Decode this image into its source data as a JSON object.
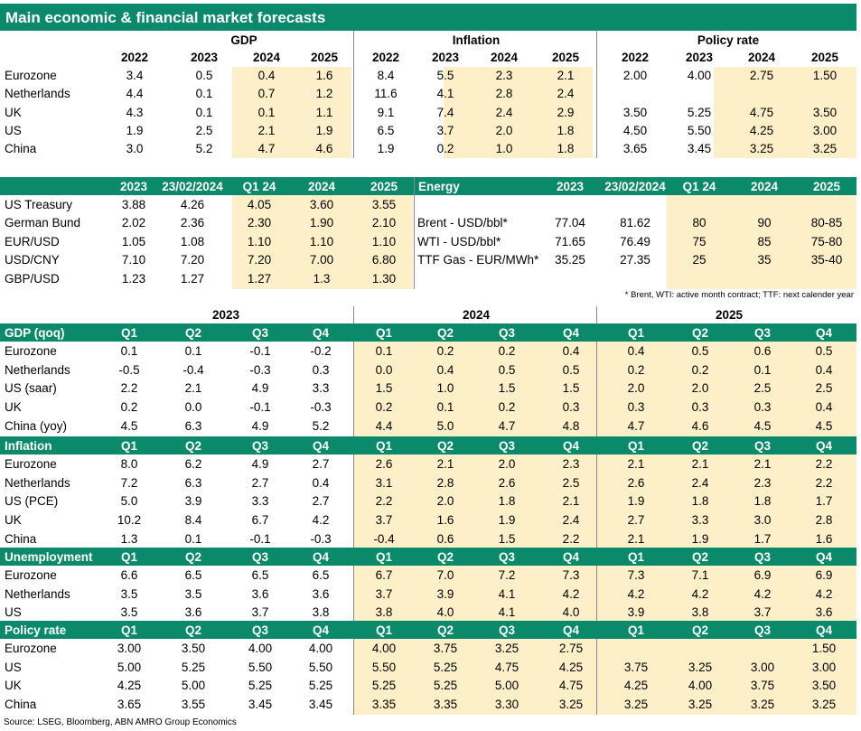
{
  "title": "Main economic & financial market forecasts",
  "source": "Source: LSEG, Bloomberg, ABN AMRO Group Economics",
  "note": "* Brent, WTI: active month contract; TTF: next calender year",
  "section1": {
    "groups": [
      "GDP",
      "Inflation",
      "Policy rate"
    ],
    "years": [
      "2022",
      "2023",
      "2024",
      "2025"
    ],
    "rows": [
      {
        "label": "Eurozone",
        "gdp": [
          "3.4",
          "0.5",
          "0.4",
          "1.6"
        ],
        "infl": [
          "8.4",
          "5.5",
          "2.3",
          "2.1"
        ],
        "rate": [
          "2.00",
          "4.00",
          "2.75",
          "1.50"
        ]
      },
      {
        "label": "Netherlands",
        "gdp": [
          "4.4",
          "0.1",
          "0.7",
          "1.2"
        ],
        "infl": [
          "11.6",
          "4.1",
          "2.8",
          "2.4"
        ],
        "rate": [
          "",
          "",
          "",
          ""
        ]
      },
      {
        "label": "UK",
        "gdp": [
          "4.3",
          "0.1",
          "0.1",
          "1.1"
        ],
        "infl": [
          "9.1",
          "7.4",
          "2.4",
          "2.9"
        ],
        "rate": [
          "3.50",
          "5.25",
          "4.75",
          "3.50"
        ]
      },
      {
        "label": "US",
        "gdp": [
          "1.9",
          "2.5",
          "2.1",
          "1.9"
        ],
        "infl": [
          "6.5",
          "3.7",
          "2.0",
          "1.8"
        ],
        "rate": [
          "4.50",
          "5.50",
          "4.25",
          "3.00"
        ]
      },
      {
        "label": "China",
        "gdp": [
          "3.0",
          "5.2",
          "4.7",
          "4.6"
        ],
        "infl": [
          "1.9",
          "0.2",
          "1.0",
          "1.8"
        ],
        "rate": [
          "3.65",
          "3.45",
          "3.25",
          "3.25"
        ]
      }
    ]
  },
  "section2": {
    "fin_headers": [
      "2023",
      "23/02/2024",
      "Q1 24",
      "2024",
      "2025"
    ],
    "fin_rows": [
      {
        "label": "US Treasury",
        "values": [
          "3.88",
          "4.26",
          "4.05",
          "3.60",
          "3.55"
        ]
      },
      {
        "label": "German Bund",
        "values": [
          "2.02",
          "2.36",
          "2.30",
          "1.90",
          "2.10"
        ]
      },
      {
        "label": "EUR/USD",
        "values": [
          "1.05",
          "1.08",
          "1.10",
          "1.10",
          "1.10"
        ]
      },
      {
        "label": "USD/CNY",
        "values": [
          "7.10",
          "7.20",
          "7.20",
          "7.00",
          "6.80"
        ]
      },
      {
        "label": "GBP/USD",
        "values": [
          "1.23",
          "1.27",
          "1.27",
          "1.3",
          "1.30"
        ]
      }
    ],
    "energy_title": "Energy",
    "energy_headers": [
      "2023",
      "23/02/2024",
      "Q1 24",
      "2024",
      "2025"
    ],
    "energy_rows": [
      {
        "label": "Brent - USD/bbl*",
        "values": [
          "77.04",
          "81.62",
          "80",
          "90",
          "80-85"
        ]
      },
      {
        "label": "WTI - USD/bbl*",
        "values": [
          "71.65",
          "76.49",
          "75",
          "85",
          "75-80"
        ]
      },
      {
        "label": "TTF Gas - EUR/MWh*",
        "values": [
          "35.25",
          "27.35",
          "25",
          "35",
          "35-40"
        ]
      }
    ]
  },
  "section3": {
    "years": [
      "2023",
      "2024",
      "2025"
    ],
    "quarters": [
      "Q1",
      "Q2",
      "Q3",
      "Q4"
    ],
    "blocks": [
      {
        "title": "GDP (qoq)",
        "rows": [
          {
            "label": "Eurozone",
            "values": [
              "0.1",
              "0.1",
              "-0.1",
              "-0.2",
              "0.1",
              "0.2",
              "0.2",
              "0.4",
              "0.4",
              "0.5",
              "0.6",
              "0.5"
            ]
          },
          {
            "label": "Netherlands",
            "values": [
              "-0.5",
              "-0.4",
              "-0.3",
              "0.3",
              "0.0",
              "0.4",
              "0.5",
              "0.5",
              "0.2",
              "0.2",
              "0.1",
              "0.4"
            ]
          },
          {
            "label": "US (saar)",
            "values": [
              "2.2",
              "2.1",
              "4.9",
              "3.3",
              "1.5",
              "1.0",
              "1.5",
              "1.5",
              "2.0",
              "2.0",
              "2.5",
              "2.5"
            ]
          },
          {
            "label": "UK",
            "values": [
              "0.2",
              "0.0",
              "-0.1",
              "-0.3",
              "0.2",
              "0.1",
              "0.2",
              "0.3",
              "0.3",
              "0.3",
              "0.3",
              "0.4"
            ]
          },
          {
            "label": "China (yoy)",
            "values": [
              "4.5",
              "6.3",
              "4.9",
              "5.2",
              "4.4",
              "5.0",
              "4.7",
              "4.8",
              "4.7",
              "4.6",
              "4.5",
              "4.5"
            ]
          }
        ]
      },
      {
        "title": "Inflation",
        "rows": [
          {
            "label": "Eurozone",
            "values": [
              "8.0",
              "6.2",
              "4.9",
              "2.7",
              "2.6",
              "2.1",
              "2.0",
              "2.3",
              "2.1",
              "2.1",
              "2.1",
              "2.2"
            ]
          },
          {
            "label": "Netherlands",
            "values": [
              "7.2",
              "6.3",
              "2.7",
              "0.4",
              "3.1",
              "2.8",
              "2.6",
              "2.5",
              "2.6",
              "2.4",
              "2.3",
              "2.2"
            ]
          },
          {
            "label": "US (PCE)",
            "values": [
              "5.0",
              "3.9",
              "3.3",
              "2.7",
              "2.2",
              "2.0",
              "1.8",
              "2.1",
              "1.9",
              "1.8",
              "1.8",
              "1.7"
            ]
          },
          {
            "label": "UK",
            "values": [
              "10.2",
              "8.4",
              "6.7",
              "4.2",
              "3.7",
              "1.6",
              "1.9",
              "2.4",
              "2.7",
              "3.3",
              "3.0",
              "2.8"
            ]
          },
          {
            "label": "China",
            "values": [
              "1.3",
              "0.1",
              "-0.1",
              "-0.3",
              "-0.4",
              "0.6",
              "1.5",
              "2.2",
              "2.1",
              "1.9",
              "1.7",
              "1.6"
            ]
          }
        ]
      },
      {
        "title": "Unemployment",
        "rows": [
          {
            "label": "Eurozone",
            "values": [
              "6.6",
              "6.5",
              "6.5",
              "6.5",
              "6.7",
              "7.0",
              "7.2",
              "7.3",
              "7.3",
              "7.1",
              "6.9",
              "6.9"
            ]
          },
          {
            "label": "Netherlands",
            "values": [
              "3.5",
              "3.5",
              "3.6",
              "3.6",
              "3.7",
              "3.9",
              "4.1",
              "4.2",
              "4.2",
              "4.2",
              "4.2",
              "4.2"
            ]
          },
          {
            "label": "US",
            "values": [
              "3.5",
              "3.6",
              "3.7",
              "3.8",
              "3.8",
              "4.0",
              "4.1",
              "4.0",
              "3.9",
              "3.8",
              "3.7",
              "3.6"
            ]
          }
        ]
      },
      {
        "title": "Policy rate",
        "rows": [
          {
            "label": "Eurozone",
            "values": [
              "3.00",
              "3.50",
              "4.00",
              "4.00",
              "4.00",
              "3.75",
              "3.25",
              "2.75",
              "",
              "",
              "",
              "1.50"
            ]
          },
          {
            "label": "US",
            "values": [
              "5.00",
              "5.25",
              "5.50",
              "5.50",
              "5.50",
              "5.25",
              "4.75",
              "4.25",
              "3.75",
              "3.25",
              "3.00",
              "3.00"
            ]
          },
          {
            "label": "UK",
            "values": [
              "4.25",
              "5.00",
              "5.25",
              "5.25",
              "5.25",
              "5.25",
              "5.00",
              "4.75",
              "4.25",
              "4.00",
              "3.75",
              "3.50"
            ]
          },
          {
            "label": "China",
            "values": [
              "3.65",
              "3.55",
              "3.45",
              "3.45",
              "3.35",
              "3.35",
              "3.30",
              "3.25",
              "3.25",
              "3.25",
              "3.25",
              "3.25"
            ]
          }
        ]
      }
    ]
  }
}
